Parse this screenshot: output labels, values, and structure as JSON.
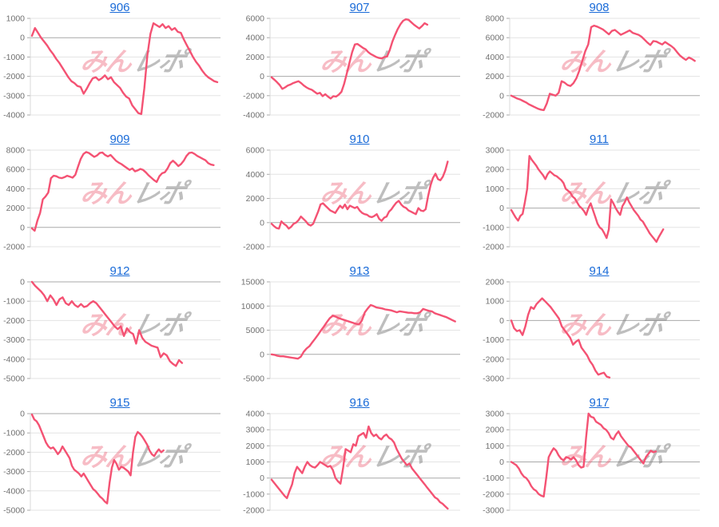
{
  "page": {
    "background": "#ffffff"
  },
  "colors": {
    "series_line": "#f45273",
    "title_link": "#1a6bd8",
    "axis_label": "#707070",
    "gridline": "#e3e3e3",
    "zero_line": "#a9a9a9",
    "axis_line": "#d9d9d9",
    "tick_mark": "#a9a9a9",
    "watermark_pink": "rgba(236,96,117,0.42)",
    "watermark_gray": "rgba(130,130,130,0.52)"
  },
  "watermark": {
    "pink_text": "みん",
    "gray_text": "レポ"
  },
  "chart_data": [
    {
      "type": "line",
      "title": "906",
      "xlabel": "",
      "ylabel": "",
      "ylim": [
        -4000,
        1000
      ],
      "yticks": [
        1000,
        0,
        -1000,
        -2000,
        -3000,
        -4000
      ],
      "x_span": 1.0,
      "values": [
        100,
        500,
        250,
        0,
        -200,
        -400,
        -650,
        -850,
        -1100,
        -1300,
        -1550,
        -1800,
        -2050,
        -2250,
        -2350,
        -2500,
        -2550,
        -2900,
        -2650,
        -2350,
        -2100,
        -2050,
        -2200,
        -2100,
        -1950,
        -2150,
        -2050,
        -2300,
        -2450,
        -2600,
        -2850,
        -3050,
        -3150,
        -3500,
        -3700,
        -3900,
        -3950,
        -2600,
        -900,
        200,
        750,
        650,
        550,
        700,
        500,
        600,
        400,
        500,
        300,
        250,
        -100,
        -400,
        -700,
        -1000,
        -1250,
        -1450,
        -1700,
        -1900,
        -2050,
        -2150,
        -2250,
        -2300
      ]
    },
    {
      "type": "line",
      "title": "907",
      "xlabel": "",
      "ylabel": "",
      "ylim": [
        -4000,
        6000
      ],
      "yticks": [
        6000,
        4000,
        2000,
        0,
        -2000,
        -4000
      ],
      "x_span": 0.84,
      "values": [
        -100,
        -350,
        -600,
        -900,
        -1300,
        -1150,
        -950,
        -850,
        -700,
        -600,
        -500,
        -700,
        -950,
        -1150,
        -1300,
        -1400,
        -1600,
        -1800,
        -1700,
        -2050,
        -1850,
        -2100,
        -2300,
        -2050,
        -2100,
        -1900,
        -1600,
        -800,
        300,
        1400,
        2500,
        3300,
        3350,
        3150,
        2950,
        2800,
        2500,
        2300,
        2150,
        2000,
        1900,
        1850,
        2000,
        2050,
        2700,
        3600,
        4300,
        4900,
        5400,
        5750,
        5900,
        5850,
        5600,
        5350,
        5150,
        4950,
        5200,
        5500,
        5350
      ]
    },
    {
      "type": "line",
      "title": "908",
      "xlabel": "",
      "ylabel": "",
      "ylim": [
        -2000,
        8000
      ],
      "yticks": [
        8000,
        6000,
        4000,
        2000,
        0,
        -2000
      ],
      "x_span": 0.99,
      "values": [
        0,
        -150,
        -300,
        -400,
        -550,
        -700,
        -900,
        -1050,
        -1200,
        -1350,
        -1450,
        -1500,
        -800,
        200,
        100,
        0,
        300,
        1500,
        1350,
        1100,
        1000,
        1300,
        1800,
        2600,
        3600,
        4600,
        5300,
        7100,
        7250,
        7150,
        7000,
        6850,
        6600,
        6350,
        6700,
        6800,
        6550,
        6300,
        6450,
        6600,
        6750,
        6500,
        6400,
        6300,
        6100,
        5800,
        5500,
        5250,
        5650,
        5600,
        5450,
        5300,
        5550,
        5350,
        5150,
        4900,
        4500,
        4150,
        3900,
        3700,
        3950,
        3800,
        3600
      ]
    },
    {
      "type": "line",
      "title": "909",
      "xlabel": "",
      "ylabel": "",
      "ylim": [
        -2000,
        8000
      ],
      "yticks": [
        8000,
        6000,
        4000,
        2000,
        0,
        -2000
      ],
      "x_span": 0.98,
      "values": [
        -100,
        -350,
        700,
        1500,
        2900,
        3200,
        3600,
        5100,
        5350,
        5300,
        5150,
        5100,
        5200,
        5350,
        5250,
        5150,
        5450,
        6300,
        7100,
        7600,
        7800,
        7700,
        7500,
        7300,
        7450,
        7700,
        7750,
        7500,
        7350,
        7500,
        7200,
        6900,
        6700,
        6550,
        6350,
        6150,
        5950,
        6100,
        5800,
        5900,
        6050,
        5950,
        5700,
        5400,
        5150,
        4900,
        4700,
        5300,
        5600,
        5700,
        6100,
        6650,
        6900,
        6650,
        6350,
        6550,
        6900,
        7400,
        7700,
        7750,
        7600,
        7400,
        7250,
        7100,
        6950,
        6650,
        6500,
        6450
      ]
    },
    {
      "type": "line",
      "title": "910",
      "xlabel": "",
      "ylabel": "",
      "ylim": [
        -2000,
        6000
      ],
      "yticks": [
        6000,
        4000,
        2000,
        0,
        -2000
      ],
      "x_span": 0.95,
      "values": [
        -100,
        -300,
        -450,
        -500,
        100,
        -100,
        -250,
        -500,
        -350,
        -100,
        0,
        200,
        500,
        300,
        100,
        -150,
        -250,
        -100,
        400,
        900,
        1500,
        1600,
        1400,
        1200,
        1000,
        900,
        800,
        1100,
        1400,
        1200,
        1500,
        1100,
        1400,
        1300,
        1200,
        1300,
        1000,
        800,
        700,
        650,
        500,
        450,
        550,
        700,
        300,
        150,
        400,
        500,
        900,
        1100,
        1400,
        1650,
        1800,
        1500,
        1300,
        1200,
        1000,
        900,
        800,
        700,
        1200,
        1000,
        950,
        1100,
        2200,
        3100,
        3700,
        4050,
        3600,
        3500,
        3800,
        4300,
        5050
      ]
    },
    {
      "type": "line",
      "title": "911",
      "xlabel": "",
      "ylabel": "",
      "ylim": [
        -2000,
        3000
      ],
      "yticks": [
        3000,
        2000,
        1000,
        0,
        -1000,
        -2000
      ],
      "x_span": 0.82,
      "values": [
        -100,
        -300,
        -500,
        -650,
        -400,
        -300,
        300,
        1000,
        2700,
        2500,
        2350,
        2200,
        2000,
        1850,
        1700,
        1500,
        1750,
        1900,
        1800,
        1700,
        1650,
        1550,
        1450,
        1300,
        1000,
        900,
        800,
        600,
        500,
        300,
        100,
        0,
        -150,
        -350,
        0,
        250,
        -100,
        -450,
        -800,
        -1000,
        -1100,
        -1300,
        -1550,
        -1100,
        450,
        250,
        0,
        -200,
        -350,
        100,
        300,
        550,
        300,
        100,
        -100,
        -250,
        -400,
        -600,
        -700,
        -900,
        -1100,
        -1300,
        -1450,
        -1600,
        -1750,
        -1500,
        -1300,
        -1100
      ]
    },
    {
      "type": "line",
      "title": "912",
      "xlabel": "",
      "ylabel": "",
      "ylim": [
        -5000,
        0
      ],
      "yticks": [
        0,
        -1000,
        -2000,
        -3000,
        -4000,
        -5000
      ],
      "x_span": 0.81,
      "values": [
        0,
        -200,
        -350,
        -500,
        -700,
        -1000,
        -700,
        -900,
        -1200,
        -900,
        -800,
        -1100,
        -1200,
        -1000,
        -1200,
        -1300,
        -1150,
        -1300,
        -1250,
        -1100,
        -1000,
        -1100,
        -1300,
        -1500,
        -1700,
        -1900,
        -2100,
        -2300,
        -2450,
        -2300,
        -2800,
        -2400,
        -2600,
        -2700,
        -3200,
        -2500,
        -2900,
        -3100,
        -3200,
        -3300,
        -3350,
        -3400,
        -3900,
        -3700,
        -3800,
        -4100,
        -4250,
        -4350,
        -4050,
        -4200
      ]
    },
    {
      "type": "line",
      "title": "913",
      "xlabel": "",
      "ylabel": "",
      "ylim": [
        -5000,
        15000
      ],
      "yticks": [
        15000,
        10000,
        5000,
        0,
        -5000
      ],
      "x_span": 0.99,
      "values": [
        0,
        -100,
        -300,
        -400,
        -400,
        -500,
        -600,
        -700,
        -800,
        -900,
        -500,
        500,
        1200,
        1700,
        2500,
        3300,
        4100,
        5000,
        5800,
        6700,
        7500,
        8000,
        7800,
        7500,
        7300,
        7100,
        6900,
        6700,
        6500,
        6300,
        6200,
        7000,
        8700,
        9500,
        10200,
        10000,
        9700,
        9600,
        9500,
        9300,
        9200,
        9100,
        8900,
        8700,
        8900,
        8800,
        8700,
        8600,
        8600,
        8500,
        8500,
        8700,
        9400,
        9200,
        9000,
        8900,
        8500,
        8300,
        8100,
        7900,
        7700,
        7400,
        7100,
        6800
      ]
    },
    {
      "type": "line",
      "title": "914",
      "xlabel": "",
      "ylabel": "",
      "ylim": [
        -3000,
        2000
      ],
      "yticks": [
        2000,
        1000,
        0,
        -1000,
        -2000,
        -3000
      ],
      "x_span": 0.53,
      "values": [
        0,
        -400,
        -550,
        -500,
        -750,
        -300,
        300,
        700,
        600,
        850,
        1000,
        1150,
        1000,
        850,
        700,
        500,
        300,
        100,
        -300,
        -500,
        -700,
        -900,
        -1250,
        -1100,
        -1000,
        -1400,
        -1600,
        -1800,
        -2100,
        -2300,
        -2600,
        -2800,
        -2750,
        -2700,
        -2900,
        -2950
      ]
    },
    {
      "type": "line",
      "title": "915",
      "xlabel": "",
      "ylabel": "",
      "ylim": [
        -5000,
        0
      ],
      "yticks": [
        0,
        -1000,
        -2000,
        -3000,
        -4000,
        -5000
      ],
      "x_span": 0.71,
      "values": [
        -50,
        -300,
        -400,
        -600,
        -900,
        -1200,
        -1500,
        -1700,
        -1800,
        -1750,
        -1900,
        -2100,
        -1950,
        -1700,
        -1900,
        -2100,
        -2300,
        -2700,
        -2900,
        -3000,
        -3100,
        -3250,
        -3100,
        -3300,
        -3500,
        -3700,
        -3900,
        -4000,
        -4150,
        -4300,
        -4400,
        -4550,
        -4650,
        -3600,
        -2800,
        -2400,
        -2600,
        -2900,
        -2750,
        -2800,
        -2900,
        -3000,
        -3200,
        -2000,
        -1200,
        -950,
        -1050,
        -1200,
        -1400,
        -1600,
        -1900,
        -2100,
        -2200,
        -2000,
        -1850,
        -2000,
        -1900
      ]
    },
    {
      "type": "line",
      "title": "916",
      "xlabel": "",
      "ylabel": "",
      "ylim": [
        -2000,
        4000
      ],
      "yticks": [
        4000,
        3000,
        2000,
        1000,
        0,
        -1000,
        -2000
      ],
      "x_span": 0.95,
      "values": [
        -100,
        -300,
        -500,
        -700,
        -900,
        -1100,
        -1250,
        -800,
        -400,
        300,
        700,
        500,
        300,
        700,
        1000,
        800,
        700,
        650,
        800,
        1000,
        900,
        800,
        700,
        750,
        500,
        0,
        -200,
        -350,
        600,
        1800,
        1700,
        1600,
        2100,
        2000,
        2600,
        2700,
        2800,
        2500,
        3200,
        2800,
        2600,
        2700,
        2500,
        2400,
        2600,
        2700,
        2500,
        2400,
        2200,
        1800,
        1500,
        1200,
        1000,
        800,
        900,
        600,
        400,
        200,
        0,
        -200,
        -400,
        -600,
        -800,
        -1000,
        -1200,
        -1300,
        -1500,
        -1600,
        -1750,
        -1900
      ]
    },
    {
      "type": "line",
      "title": "917",
      "xlabel": "",
      "ylabel": "",
      "ylim": [
        -3000,
        3000
      ],
      "yticks": [
        3000,
        2000,
        1000,
        0,
        -1000,
        -2000,
        -3000
      ],
      "x_span": 0.78,
      "values": [
        0,
        -100,
        -200,
        -400,
        -700,
        -900,
        -1000,
        -1200,
        -1500,
        -1700,
        -1800,
        -2000,
        -2100,
        -2150,
        -1000,
        300,
        600,
        850,
        700,
        400,
        200,
        100,
        300,
        250,
        150,
        300,
        100,
        -200,
        -350,
        -300,
        1500,
        3000,
        2800,
        2750,
        2500,
        2400,
        2300,
        2100,
        2000,
        1800,
        1500,
        1400,
        1700,
        1900,
        1600,
        1400,
        1200,
        1000,
        900,
        700,
        500,
        300,
        100,
        -100,
        300,
        500,
        700,
        600,
        650
      ]
    }
  ]
}
